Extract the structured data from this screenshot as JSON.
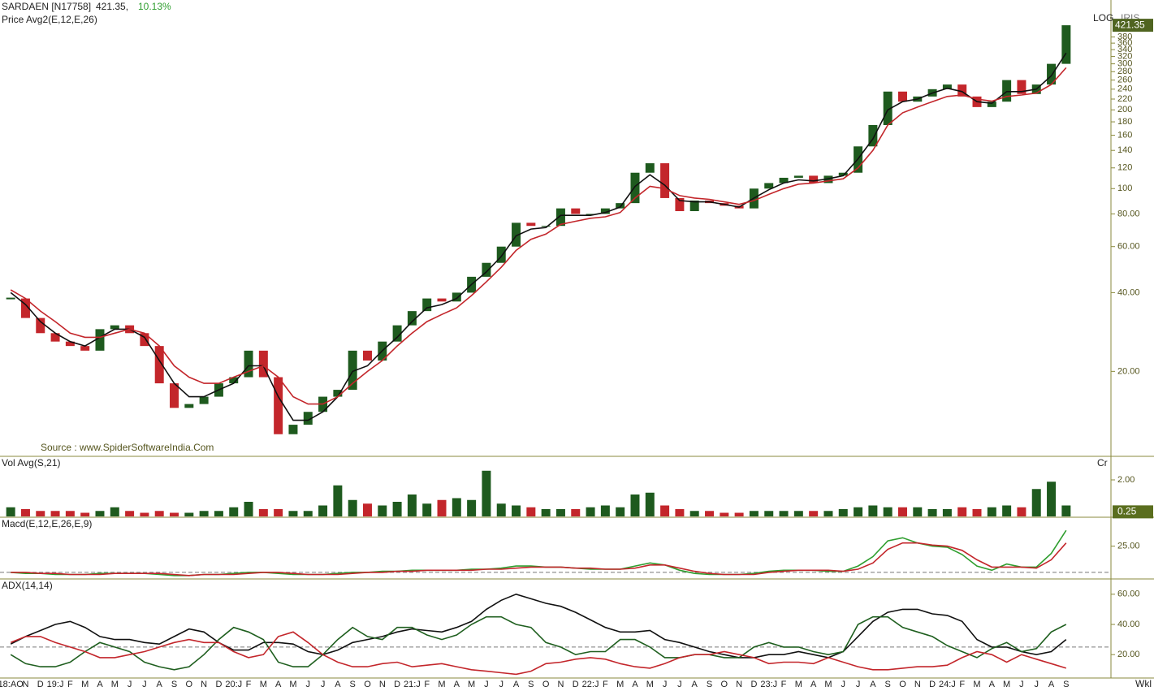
{
  "chart_data": [
    {
      "type": "candlestick",
      "title": "SARDAEN [N17758]",
      "price_text": "421.35,",
      "change": "10.13%",
      "indicator": "Price  Avg2(E,12,E,26)",
      "scale_label": "LOG",
      "scale_label2": "IRIS",
      "source": "Source : www.SpiderSoftwareIndia.Com",
      "period": "Wkl",
      "log_scale": true,
      "up_color": "#1e5a1e",
      "down_color": "#c3262b",
      "categories": [
        "18:AO",
        "N",
        "D",
        "19:J",
        "F",
        "M",
        "A",
        "M",
        "J",
        "J",
        "A",
        "S",
        "O",
        "N",
        "D",
        "20:J",
        "F",
        "M",
        "A",
        "M",
        "J",
        "J",
        "A",
        "S",
        "O",
        "N",
        "D",
        "21:J",
        "F",
        "M",
        "A",
        "M",
        "J",
        "J",
        "A",
        "S",
        "O",
        "N",
        "D",
        "22:J",
        "F",
        "M",
        "A",
        "M",
        "J",
        "J",
        "A",
        "S",
        "O",
        "N",
        "D",
        "23:J",
        "F",
        "M",
        "A",
        "M",
        "J",
        "J",
        "A",
        "S",
        "O",
        "N",
        "D",
        "24:J",
        "F",
        "M",
        "A",
        "M",
        "J",
        "J",
        "A",
        "S"
      ],
      "close": [
        38,
        32,
        28,
        26,
        25,
        24,
        29,
        30,
        28,
        25,
        18,
        14.5,
        15,
        16,
        18,
        19,
        24,
        19,
        11.5,
        12.5,
        14,
        16,
        17,
        24,
        22,
        26,
        30,
        34,
        38,
        37,
        40,
        46,
        52,
        60,
        74,
        72,
        72,
        84,
        80,
        80,
        84,
        88,
        115,
        125,
        92,
        82,
        90,
        88,
        86,
        84,
        100,
        105,
        110,
        112,
        105,
        112,
        115,
        145,
        175,
        235,
        215,
        225,
        240,
        250,
        225,
        205,
        215,
        260,
        230,
        250,
        300,
        421.35
      ],
      "series": [
        {
          "color": "#111111",
          "values": [
            40,
            36,
            31,
            28,
            26,
            25,
            27,
            29,
            29,
            27,
            22,
            18,
            16,
            16,
            17,
            18,
            21,
            21,
            16,
            13,
            13,
            14,
            16,
            20,
            21,
            24,
            27,
            31,
            35,
            36,
            38,
            43,
            48,
            55,
            66,
            70,
            71,
            79,
            79,
            79,
            81,
            85,
            102,
            113,
            103,
            90,
            89,
            89,
            87,
            85,
            92,
            99,
            105,
            108,
            107,
            109,
            112,
            130,
            155,
            200,
            215,
            220,
            232,
            242,
            235,
            215,
            212,
            235,
            235,
            240,
            270,
            330
          ]
        },
        {
          "color": "#c3262b",
          "values": [
            41,
            38,
            34,
            31,
            28,
            27,
            27,
            28,
            29,
            28,
            25,
            21,
            19,
            18,
            18,
            19,
            20,
            21,
            19,
            16,
            15,
            15,
            16,
            18,
            20,
            22,
            25,
            28,
            31,
            33,
            35,
            39,
            44,
            50,
            58,
            64,
            67,
            73,
            75,
            77,
            78,
            81,
            92,
            102,
            100,
            94,
            92,
            91,
            89,
            87,
            90,
            95,
            100,
            104,
            105,
            107,
            109,
            120,
            140,
            175,
            195,
            205,
            215,
            225,
            228,
            220,
            216,
            225,
            228,
            232,
            250,
            290
          ]
        }
      ],
      "ylim": [
        9.6,
        490
      ],
      "yticks": [
        {
          "value": 20,
          "label": "20.00"
        },
        {
          "value": 40,
          "label": "40.00"
        },
        {
          "value": 60,
          "label": "60.00"
        },
        {
          "value": 80,
          "label": "80.00"
        },
        100,
        120,
        140,
        160,
        180,
        200,
        220,
        240,
        260,
        280,
        300,
        320,
        340,
        360,
        380
      ]
    },
    {
      "type": "bar",
      "title": "Vol  Avg(S,21)",
      "unit": "Cr",
      "values": [
        0.5,
        0.4,
        0.3,
        0.3,
        0.3,
        0.2,
        0.3,
        0.5,
        0.3,
        0.2,
        0.3,
        0.2,
        0.2,
        0.3,
        0.3,
        0.5,
        0.8,
        0.4,
        0.4,
        0.3,
        0.3,
        0.6,
        1.7,
        0.9,
        0.7,
        0.6,
        0.8,
        1.2,
        0.7,
        0.9,
        1.0,
        0.9,
        2.5,
        0.7,
        0.6,
        0.5,
        0.4,
        0.4,
        0.4,
        0.5,
        0.6,
        0.5,
        1.2,
        1.3,
        0.6,
        0.4,
        0.3,
        0.3,
        0.2,
        0.2,
        0.3,
        0.3,
        0.3,
        0.3,
        0.3,
        0.3,
        0.4,
        0.5,
        0.6,
        0.5,
        0.5,
        0.5,
        0.4,
        0.4,
        0.5,
        0.4,
        0.5,
        0.6,
        0.5,
        1.5,
        1.9,
        0.6
      ],
      "current_avg": {
        "value": 0.25,
        "label": "0.25"
      },
      "ylim": [
        0,
        3.2
      ],
      "yticks": [
        {
          "value": 2,
          "label": "2.00"
        }
      ]
    },
    {
      "type": "line",
      "title": "Macd(E,12,E,26,E,9)",
      "hline": 0,
      "series": [
        {
          "color": "#2f9e2f",
          "values": [
            0,
            -1,
            -1,
            -2,
            -2,
            -2,
            -1,
            -1,
            -1,
            -1,
            -2,
            -3,
            -3,
            -2,
            -2,
            -1,
            0,
            0,
            -1,
            -2,
            -2,
            -2,
            -1,
            0,
            0,
            1,
            1,
            2,
            2,
            2,
            2,
            3,
            3,
            4,
            6,
            6,
            5,
            5,
            4,
            3,
            3,
            3,
            6,
            9,
            7,
            2,
            -1,
            -2,
            -2,
            -2,
            -1,
            1,
            2,
            2,
            2,
            1,
            1,
            6,
            15,
            30,
            33,
            28,
            25,
            24,
            17,
            6,
            2,
            8,
            5,
            5,
            18,
            40
          ]
        },
        {
          "color": "#c3262b",
          "values": [
            0,
            0,
            -1,
            -1,
            -2,
            -2,
            -2,
            -1,
            -1,
            -1,
            -1,
            -2,
            -3,
            -2,
            -2,
            -2,
            -1,
            0,
            0,
            -1,
            -2,
            -2,
            -2,
            -1,
            0,
            0,
            1,
            1,
            2,
            2,
            2,
            2,
            3,
            3,
            4,
            5,
            5,
            5,
            4,
            4,
            3,
            3,
            4,
            7,
            7,
            4,
            1,
            -1,
            -2,
            -2,
            -2,
            0,
            1,
            2,
            2,
            2,
            1,
            3,
            9,
            22,
            28,
            28,
            26,
            25,
            21,
            12,
            5,
            5,
            5,
            4,
            12,
            28
          ]
        }
      ],
      "ylim": [
        -5.5,
        51
      ],
      "yticks": [
        {
          "value": 25,
          "label": "25.00"
        }
      ]
    },
    {
      "type": "line",
      "title": "ADX(14,14)",
      "hline": 25,
      "series": [
        {
          "color": "#111111",
          "values": [
            27,
            32,
            36,
            40,
            42,
            38,
            32,
            30,
            30,
            28,
            27,
            32,
            37,
            35,
            28,
            23,
            23,
            28,
            28,
            27,
            22,
            20,
            23,
            28,
            30,
            32,
            35,
            37,
            36,
            35,
            38,
            42,
            50,
            56,
            60,
            57,
            54,
            52,
            48,
            43,
            38,
            35,
            35,
            36,
            30,
            28,
            25,
            22,
            20,
            18,
            18,
            20,
            20,
            22,
            20,
            18,
            22,
            32,
            42,
            48,
            50,
            50,
            47,
            46,
            42,
            30,
            25,
            25,
            22,
            20,
            22,
            30
          ]
        },
        {
          "color": "#1f5f1f",
          "values": [
            20,
            14,
            12,
            12,
            15,
            22,
            28,
            25,
            22,
            15,
            12,
            10,
            12,
            20,
            30,
            38,
            35,
            30,
            15,
            12,
            12,
            20,
            30,
            38,
            32,
            30,
            38,
            38,
            33,
            30,
            33,
            40,
            45,
            45,
            40,
            38,
            28,
            25,
            20,
            22,
            22,
            30,
            30,
            25,
            18,
            18,
            20,
            20,
            18,
            18,
            25,
            28,
            25,
            25,
            22,
            20,
            22,
            40,
            45,
            45,
            38,
            35,
            32,
            26,
            22,
            18,
            24,
            28,
            22,
            24,
            35,
            40
          ]
        },
        {
          "color": "#c3262b",
          "values": [
            28,
            32,
            32,
            28,
            25,
            22,
            18,
            18,
            20,
            22,
            25,
            28,
            30,
            28,
            28,
            22,
            18,
            20,
            32,
            35,
            28,
            20,
            15,
            12,
            12,
            14,
            15,
            12,
            13,
            14,
            12,
            10,
            9,
            8,
            7,
            9,
            14,
            15,
            17,
            18,
            17,
            14,
            12,
            11,
            14,
            18,
            20,
            20,
            22,
            20,
            18,
            14,
            15,
            15,
            14,
            18,
            15,
            12,
            10,
            10,
            11,
            12,
            12,
            13,
            18,
            22,
            20,
            15,
            20,
            17,
            14,
            11
          ]
        }
      ],
      "ylim": [
        4.5,
        69.6
      ],
      "yticks": [
        {
          "value": 60,
          "label": "60.00"
        },
        {
          "value": 40,
          "label": "40.00"
        },
        {
          "value": 20,
          "label": "20.00"
        }
      ]
    }
  ]
}
